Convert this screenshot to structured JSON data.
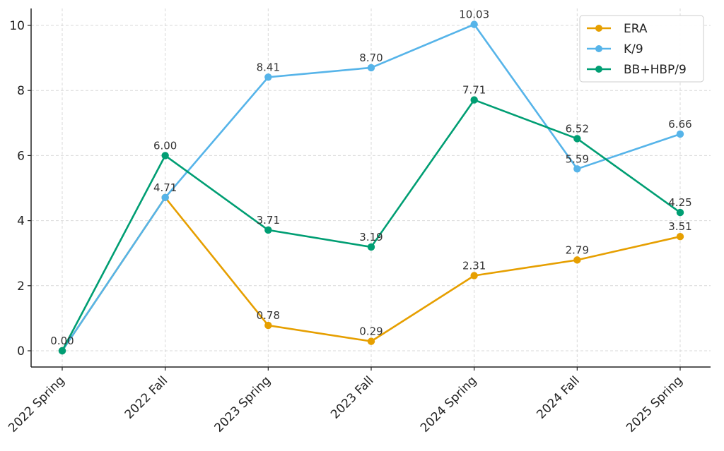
{
  "chart_data": {
    "type": "line",
    "categories": [
      "2022 Spring",
      "2022 Fall",
      "2023 Spring",
      "2023 Fall",
      "2024 Spring",
      "2024 Fall",
      "2025 Spring"
    ],
    "series": [
      {
        "name": "ERA",
        "color": "#E69F00",
        "values": [
          0.0,
          4.71,
          0.78,
          0.29,
          2.31,
          2.79,
          3.51
        ]
      },
      {
        "name": "K/9",
        "color": "#56B4E9",
        "values": [
          0.0,
          4.71,
          8.41,
          8.7,
          10.03,
          5.59,
          6.66
        ]
      },
      {
        "name": "BB+HBP/9",
        "color": "#009E73",
        "values": [
          0.0,
          6.0,
          3.71,
          3.19,
          7.71,
          6.52,
          4.25
        ]
      }
    ],
    "data_labels": [
      {
        "series": "ERA",
        "index": 0,
        "text": "0.00"
      },
      {
        "series": "ERA",
        "index": 1,
        "text": "4.71"
      },
      {
        "series": "ERA",
        "index": 2,
        "text": "0.78"
      },
      {
        "series": "ERA",
        "index": 3,
        "text": "0.29"
      },
      {
        "series": "ERA",
        "index": 4,
        "text": "2.31"
      },
      {
        "series": "ERA",
        "index": 5,
        "text": "2.79"
      },
      {
        "series": "ERA",
        "index": 6,
        "text": "3.51"
      },
      {
        "series": "K/9",
        "index": 2,
        "text": "8.41"
      },
      {
        "series": "K/9",
        "index": 3,
        "text": "8.70"
      },
      {
        "series": "K/9",
        "index": 4,
        "text": "10.03"
      },
      {
        "series": "K/9",
        "index": 5,
        "text": "5.59"
      },
      {
        "series": "K/9",
        "index": 6,
        "text": "6.66"
      },
      {
        "series": "BB+HBP/9",
        "index": 1,
        "text": "6.00"
      },
      {
        "series": "BB+HBP/9",
        "index": 2,
        "text": "3.71"
      },
      {
        "series": "BB+HBP/9",
        "index": 3,
        "text": "3.19"
      },
      {
        "series": "BB+HBP/9",
        "index": 4,
        "text": "7.71"
      },
      {
        "series": "BB+HBP/9",
        "index": 5,
        "text": "6.52"
      },
      {
        "series": "BB+HBP/9",
        "index": 6,
        "text": "4.25"
      }
    ],
    "yticks": [
      0,
      2,
      4,
      6,
      8,
      10
    ],
    "ytick_labels": [
      "0",
      "2",
      "4",
      "6",
      "8",
      "10"
    ],
    "ylim": [
      -0.5,
      10.5
    ],
    "title": "",
    "xlabel": "",
    "ylabel": "",
    "grid": true,
    "legend_position": "top-right"
  }
}
